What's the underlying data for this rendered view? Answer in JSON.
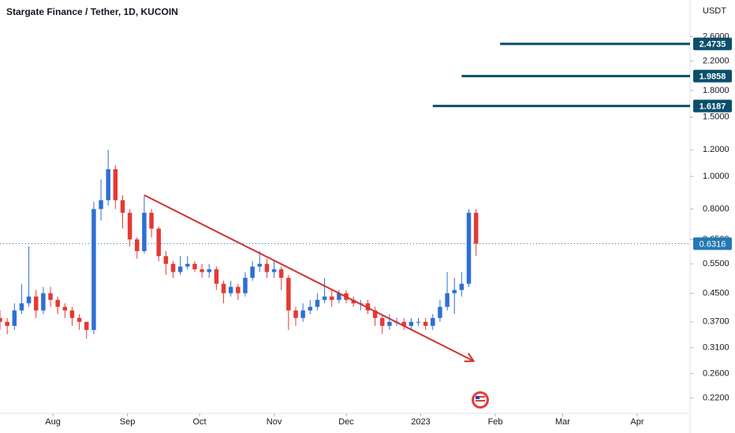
{
  "chart_data": {
    "type": "candlestick",
    "title": "Stargate Finance / Tether, 1D, KUCOIN",
    "y_axis_label": "USDT",
    "log_scale": true,
    "grid": false,
    "up_color": "#2e6fd6",
    "down_color": "#e53935",
    "x": [
      0,
      3,
      6,
      9,
      12,
      15,
      18,
      21,
      24,
      27,
      30,
      33,
      36,
      39,
      42,
      45,
      48,
      51,
      54,
      57,
      60,
      63,
      66,
      69,
      72,
      75,
      78,
      81,
      84,
      87,
      90,
      93,
      96,
      99,
      102,
      105,
      108,
      111,
      114,
      117,
      120,
      123,
      126,
      129,
      132,
      135,
      138,
      141,
      144,
      147,
      150,
      153,
      156,
      159,
      162,
      165,
      168,
      171,
      174,
      177,
      180,
      183,
      186,
      189,
      192,
      195,
      198
    ],
    "open": [
      0.38,
      0.37,
      0.36,
      0.4,
      0.42,
      0.44,
      0.4,
      0.45,
      0.43,
      0.41,
      0.4,
      0.38,
      0.37,
      0.35,
      0.8,
      0.85,
      1.05,
      0.85,
      0.78,
      0.65,
      0.6,
      0.78,
      0.7,
      0.58,
      0.55,
      0.52,
      0.54,
      0.55,
      0.53,
      0.52,
      0.53,
      0.48,
      0.45,
      0.47,
      0.45,
      0.5,
      0.54,
      0.55,
      0.52,
      0.53,
      0.5,
      0.4,
      0.38,
      0.4,
      0.41,
      0.43,
      0.44,
      0.43,
      0.45,
      0.43,
      0.42,
      0.42,
      0.4,
      0.38,
      0.36,
      0.37,
      0.37,
      0.36,
      0.37,
      0.37,
      0.36,
      0.38,
      0.41,
      0.45,
      0.46,
      0.48,
      0.78
    ],
    "high": [
      0.4,
      0.38,
      0.42,
      0.48,
      0.62,
      0.46,
      0.47,
      0.47,
      0.44,
      0.42,
      0.41,
      0.39,
      0.37,
      0.84,
      0.98,
      1.2,
      1.08,
      0.88,
      0.8,
      0.66,
      0.88,
      0.8,
      0.71,
      0.6,
      0.56,
      0.58,
      0.58,
      0.56,
      0.55,
      0.55,
      0.54,
      0.49,
      0.49,
      0.48,
      0.52,
      0.56,
      0.6,
      0.57,
      0.56,
      0.54,
      0.51,
      0.41,
      0.42,
      0.43,
      0.45,
      0.5,
      0.46,
      0.46,
      0.46,
      0.44,
      0.43,
      0.43,
      0.41,
      0.39,
      0.39,
      0.38,
      0.38,
      0.38,
      0.38,
      0.38,
      0.39,
      0.43,
      0.52,
      0.5,
      0.52,
      0.8,
      0.8
    ],
    "low": [
      0.35,
      0.34,
      0.35,
      0.39,
      0.41,
      0.38,
      0.39,
      0.41,
      0.39,
      0.38,
      0.36,
      0.35,
      0.33,
      0.34,
      0.74,
      0.82,
      0.8,
      0.7,
      0.62,
      0.57,
      0.59,
      0.66,
      0.56,
      0.51,
      0.5,
      0.51,
      0.53,
      0.52,
      0.5,
      0.5,
      0.46,
      0.42,
      0.44,
      0.43,
      0.44,
      0.49,
      0.52,
      0.5,
      0.5,
      0.46,
      0.35,
      0.36,
      0.37,
      0.39,
      0.4,
      0.42,
      0.41,
      0.42,
      0.42,
      0.41,
      0.4,
      0.39,
      0.36,
      0.34,
      0.35,
      0.36,
      0.35,
      0.35,
      0.36,
      0.35,
      0.35,
      0.37,
      0.4,
      0.39,
      0.44,
      0.47,
      0.58
    ],
    "close": [
      0.37,
      0.36,
      0.4,
      0.42,
      0.44,
      0.4,
      0.45,
      0.43,
      0.41,
      0.4,
      0.38,
      0.37,
      0.35,
      0.8,
      0.85,
      1.05,
      0.85,
      0.78,
      0.65,
      0.6,
      0.78,
      0.7,
      0.58,
      0.55,
      0.52,
      0.54,
      0.55,
      0.53,
      0.52,
      0.53,
      0.48,
      0.45,
      0.47,
      0.45,
      0.5,
      0.54,
      0.55,
      0.52,
      0.53,
      0.5,
      0.4,
      0.38,
      0.4,
      0.41,
      0.43,
      0.44,
      0.43,
      0.45,
      0.43,
      0.42,
      0.42,
      0.4,
      0.38,
      0.36,
      0.37,
      0.37,
      0.36,
      0.37,
      0.37,
      0.36,
      0.38,
      0.41,
      0.45,
      0.46,
      0.48,
      0.78,
      0.6316
    ],
    "xlim": [
      0,
      287
    ],
    "ylim": [
      0.198,
      3.34
    ],
    "xticks": [
      {
        "value": 22,
        "label": "Aug"
      },
      {
        "value": 53,
        "label": "Sep"
      },
      {
        "value": 83,
        "label": "Oct"
      },
      {
        "value": 114,
        "label": "Nov"
      },
      {
        "value": 144,
        "label": "Dec"
      },
      {
        "value": 175,
        "label": "2023"
      },
      {
        "value": 206,
        "label": "Feb"
      },
      {
        "value": 234,
        "label": "Mar"
      },
      {
        "value": 265,
        "label": "Apr"
      }
    ],
    "yticks": [
      {
        "value": 0.22,
        "label": "0.2200"
      },
      {
        "value": 0.26,
        "label": "0.2600"
      },
      {
        "value": 0.31,
        "label": "0.3100"
      },
      {
        "value": 0.37,
        "label": "0.3700"
      },
      {
        "value": 0.45,
        "label": "0.4500"
      },
      {
        "value": 0.55,
        "label": "0.5500"
      },
      {
        "value": 0.65,
        "label": "0.6500"
      },
      {
        "value": 0.8,
        "label": "0.8000"
      },
      {
        "value": 1,
        "label": "1.0000"
      },
      {
        "value": 1.2,
        "label": "1.2000"
      },
      {
        "value": 1.5,
        "label": "1.5000"
      },
      {
        "value": 1.8,
        "label": "1.8000"
      },
      {
        "value": 2.2,
        "label": "2.2000"
      },
      {
        "value": 2.6,
        "label": "2.6000"
      }
    ],
    "levels": [
      {
        "value": 2.4735,
        "start": 208,
        "color": "#0b4f6c"
      },
      {
        "value": 1.9858,
        "start": 192,
        "color": "#0b4f6c"
      },
      {
        "value": 1.6187,
        "start": 180,
        "color": "#0b4f6c"
      }
    ],
    "last_price": {
      "value": 0.6316,
      "color": "#2378b5"
    },
    "trendline": {
      "x": [
        60,
        197
      ],
      "values": [
        0.88,
        0.283
      ],
      "color": "#d32f2f"
    }
  }
}
